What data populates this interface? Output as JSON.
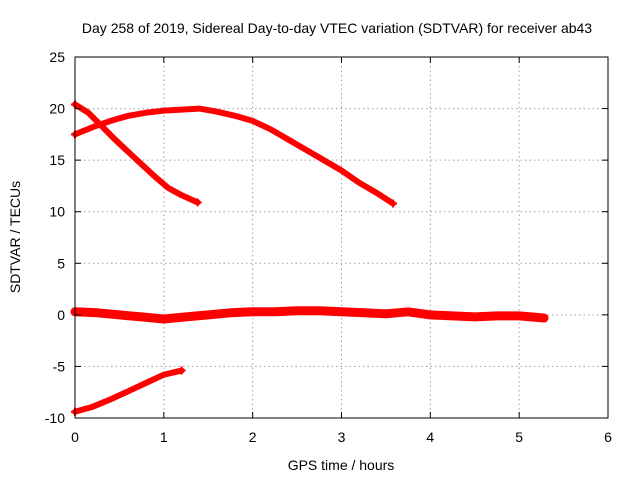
{
  "chart_data": {
    "type": "line",
    "title": "Day 258 of 2019, Sidereal Day-to-day VTEC variation (SDTVAR) for receiver ab43",
    "xlabel": "GPS time / hours",
    "ylabel": "SDTVAR / TECUs",
    "xlim": [
      0,
      6
    ],
    "ylim": [
      -10,
      25
    ],
    "xticks": [
      0,
      1,
      2,
      3,
      4,
      5,
      6
    ],
    "yticks": [
      -10,
      -5,
      0,
      5,
      10,
      15,
      20,
      25
    ],
    "grid": true,
    "legend": "none",
    "series_color": "#ff0000",
    "series": [
      {
        "x": [
          0.0,
          0.2,
          0.4,
          0.6,
          0.8,
          1.0,
          1.2,
          1.4,
          1.6,
          1.8,
          2.0,
          2.2,
          2.4,
          2.6,
          2.8,
          3.0,
          3.2,
          3.4,
          3.58
        ],
        "y": [
          17.5,
          18.2,
          18.8,
          19.3,
          19.6,
          19.8,
          19.9,
          20.0,
          19.7,
          19.3,
          18.8,
          18.0,
          17.0,
          16.0,
          15.0,
          14.0,
          12.8,
          11.8,
          10.8
        ]
      },
      {
        "x": [
          0.0,
          0.15,
          0.3,
          0.45,
          0.6,
          0.75,
          0.9,
          1.05,
          1.2,
          1.38
        ],
        "y": [
          20.4,
          19.6,
          18.3,
          17.0,
          15.8,
          14.6,
          13.4,
          12.3,
          11.6,
          10.9
        ]
      },
      {
        "x": [
          0.0,
          0.25,
          0.5,
          0.75,
          1.0,
          1.25,
          1.5,
          1.75,
          2.0,
          2.25,
          2.5,
          2.75,
          3.0,
          3.25,
          3.5,
          3.75,
          4.0,
          4.25,
          4.5,
          4.75,
          5.0,
          5.28
        ],
        "y": [
          0.3,
          0.2,
          0.0,
          -0.2,
          -0.4,
          -0.2,
          0.0,
          0.2,
          0.3,
          0.3,
          0.4,
          0.4,
          0.3,
          0.2,
          0.1,
          0.3,
          0.0,
          -0.1,
          -0.2,
          -0.1,
          -0.1,
          -0.3
        ]
      },
      {
        "x": [
          0.0,
          0.2,
          0.4,
          0.6,
          0.8,
          1.0,
          1.2
        ],
        "y": [
          -9.4,
          -8.9,
          -8.2,
          -7.4,
          -6.6,
          -5.8,
          -5.4
        ]
      }
    ]
  }
}
